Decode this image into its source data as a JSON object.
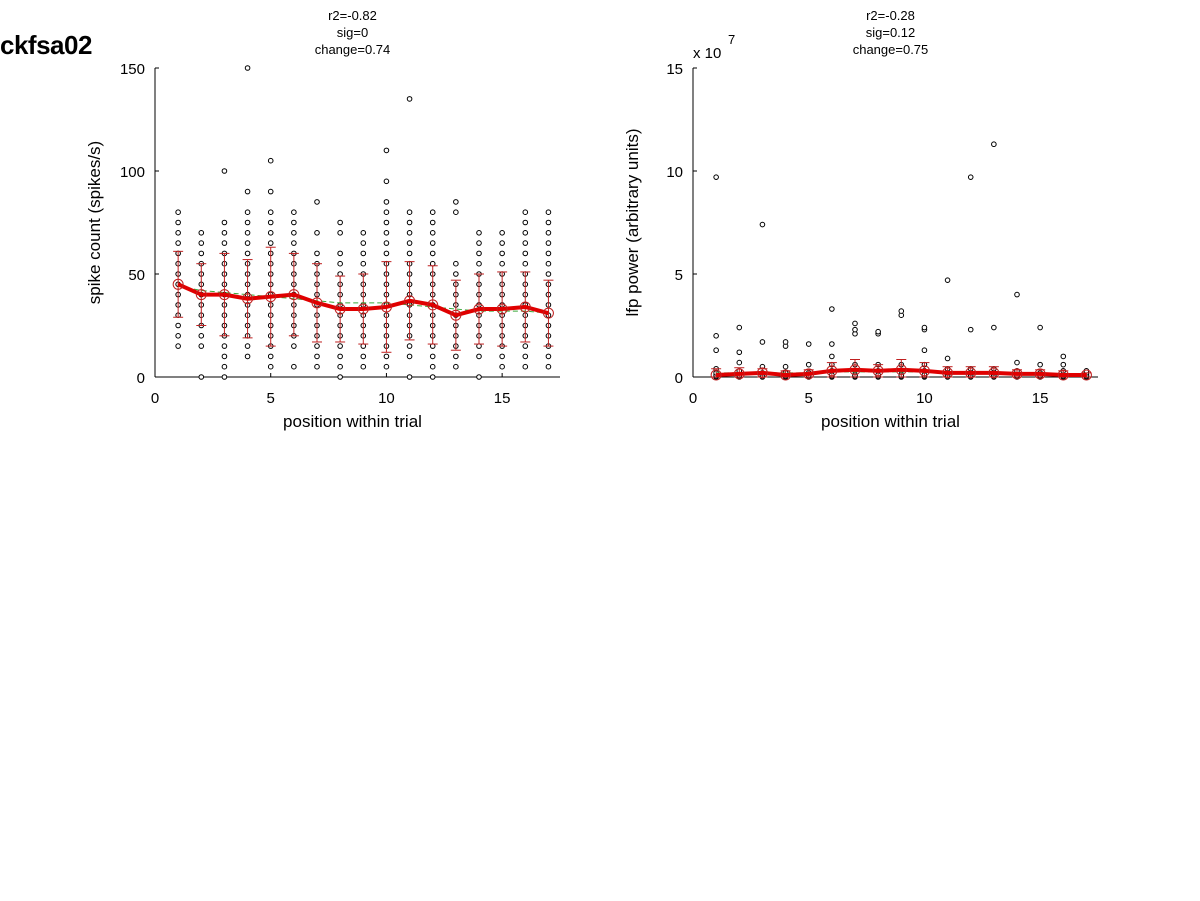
{
  "figure_title": "ckfsa02",
  "colors": {
    "mean_line": "#e00000",
    "errorbar": "#c02020",
    "fit_line": "#3aa83a",
    "points": "#000000"
  },
  "chart_data": [
    {
      "type": "scatter",
      "stats": [
        "r2=-0.82",
        "sig=0",
        "change=0.74"
      ],
      "xlabel": "position within trial",
      "ylabel": "spike count (spikes/s)",
      "exponent_label": "",
      "xlim": [
        0,
        17.5
      ],
      "ylim": [
        0,
        150
      ],
      "xticks": [
        0,
        5,
        10,
        15
      ],
      "yticks": [
        0,
        50,
        100,
        150
      ],
      "ytick_labels": [
        "0",
        "50",
        "100",
        "150"
      ],
      "mean": [
        45,
        40,
        40,
        38,
        39,
        40,
        36,
        33,
        33,
        34,
        37,
        35,
        30,
        33,
        33,
        34,
        31
      ],
      "std": [
        16,
        15,
        20,
        19,
        24,
        20,
        19,
        16,
        17,
        22,
        19,
        19,
        17,
        17,
        18,
        17,
        16
      ],
      "fit": [
        44,
        42,
        41,
        40,
        39,
        38,
        37,
        36,
        36,
        36,
        35,
        34,
        33,
        32,
        32,
        32,
        31
      ],
      "points": [
        [
          15,
          20,
          25,
          30,
          35,
          40,
          45,
          50,
          55,
          60,
          65,
          70,
          75,
          80
        ],
        [
          0,
          15,
          20,
          25,
          30,
          35,
          40,
          45,
          50,
          55,
          60,
          65,
          70
        ],
        [
          0,
          5,
          10,
          15,
          20,
          25,
          30,
          35,
          40,
          45,
          50,
          55,
          60,
          65,
          70,
          75,
          100
        ],
        [
          10,
          15,
          20,
          25,
          30,
          35,
          40,
          45,
          50,
          55,
          60,
          65,
          70,
          75,
          80,
          90,
          150
        ],
        [
          5,
          10,
          15,
          20,
          25,
          30,
          35,
          40,
          45,
          50,
          55,
          60,
          65,
          70,
          75,
          80,
          90,
          105
        ],
        [
          5,
          15,
          20,
          25,
          30,
          35,
          40,
          45,
          50,
          55,
          60,
          65,
          70,
          75,
          80
        ],
        [
          5,
          10,
          15,
          20,
          25,
          30,
          35,
          40,
          45,
          50,
          55,
          60,
          70,
          85
        ],
        [
          0,
          5,
          10,
          15,
          20,
          25,
          30,
          35,
          40,
          45,
          50,
          55,
          60,
          70,
          75
        ],
        [
          5,
          10,
          15,
          20,
          25,
          30,
          35,
          40,
          45,
          50,
          55,
          60,
          65,
          70
        ],
        [
          5,
          10,
          15,
          20,
          25,
          30,
          35,
          40,
          45,
          50,
          55,
          60,
          65,
          70,
          75,
          80,
          85,
          95,
          110
        ],
        [
          0,
          10,
          15,
          20,
          25,
          30,
          35,
          40,
          45,
          50,
          55,
          60,
          65,
          70,
          75,
          80,
          135
        ],
        [
          0,
          5,
          10,
          15,
          20,
          25,
          30,
          35,
          40,
          45,
          50,
          55,
          60,
          65,
          70,
          75,
          80
        ],
        [
          5,
          10,
          15,
          20,
          25,
          30,
          35,
          40,
          45,
          50,
          55,
          80,
          85
        ],
        [
          0,
          10,
          15,
          20,
          25,
          30,
          35,
          40,
          45,
          50,
          55,
          60,
          65,
          70
        ],
        [
          5,
          10,
          15,
          20,
          25,
          30,
          35,
          40,
          45,
          50,
          55,
          60,
          65,
          70
        ],
        [
          5,
          10,
          15,
          20,
          25,
          30,
          35,
          40,
          45,
          50,
          55,
          60,
          65,
          70,
          75,
          80
        ],
        [
          5,
          10,
          15,
          20,
          25,
          30,
          35,
          40,
          45,
          50,
          55,
          60,
          65,
          70,
          75,
          80
        ]
      ]
    },
    {
      "type": "scatter",
      "stats": [
        "r2=-0.28",
        "sig=0.12",
        "change=0.75"
      ],
      "xlabel": "position within trial",
      "ylabel": "lfp power (arbitrary units)",
      "exponent_label": "x 10",
      "exponent_sup": "7",
      "xlim": [
        0,
        17.5
      ],
      "ylim": [
        0,
        15
      ],
      "xticks": [
        0,
        5,
        10,
        15
      ],
      "yticks": [
        0,
        5,
        10,
        15
      ],
      "ytick_labels": [
        "0",
        "5",
        "10",
        "15"
      ],
      "mean": [
        0.1,
        0.15,
        0.2,
        0.1,
        0.15,
        0.3,
        0.35,
        0.3,
        0.35,
        0.3,
        0.2,
        0.2,
        0.2,
        0.15,
        0.15,
        0.1,
        0.1
      ],
      "std": [
        0.3,
        0.3,
        0.2,
        0.2,
        0.2,
        0.4,
        0.5,
        0.3,
        0.5,
        0.4,
        0.3,
        0.3,
        0.3,
        0.2,
        0.2,
        0.2,
        0.1
      ],
      "fit": [
        0.2,
        0.2,
        0.2,
        0.2,
        0.2,
        0.25,
        0.25,
        0.25,
        0.25,
        0.25,
        0.2,
        0.2,
        0.2,
        0.2,
        0.15,
        0.15,
        0.1
      ],
      "points": [
        [
          0,
          0.05,
          0.1,
          0.2,
          0.4,
          1.3,
          2.0,
          9.7
        ],
        [
          0,
          0.05,
          0.1,
          0.3,
          0.7,
          1.2,
          2.4
        ],
        [
          0,
          0.05,
          0.1,
          0.2,
          0.5,
          1.7,
          7.4
        ],
        [
          0,
          0.05,
          0.1,
          0.2,
          0.5,
          1.5,
          1.7
        ],
        [
          0,
          0.05,
          0.1,
          0.2,
          0.6,
          1.6
        ],
        [
          0,
          0.05,
          0.1,
          0.3,
          0.6,
          1.0,
          1.6,
          3.3
        ],
        [
          0,
          0.05,
          0.1,
          0.3,
          0.6,
          2.1,
          2.3,
          2.6
        ],
        [
          0,
          0.05,
          0.1,
          0.3,
          0.6,
          2.1,
          2.2
        ],
        [
          0,
          0.05,
          0.1,
          0.3,
          0.6,
          3.0,
          3.2
        ],
        [
          0,
          0.05,
          0.1,
          0.3,
          0.6,
          1.3,
          2.3,
          2.4
        ],
        [
          0,
          0.05,
          0.1,
          0.2,
          0.4,
          0.9,
          4.7
        ],
        [
          0,
          0.05,
          0.1,
          0.2,
          0.4,
          2.3,
          9.7
        ],
        [
          0,
          0.05,
          0.1,
          0.2,
          0.4,
          2.4,
          11.3
        ],
        [
          0,
          0.05,
          0.1,
          0.3,
          0.7,
          4.0
        ],
        [
          0,
          0.05,
          0.1,
          0.2,
          0.6,
          2.4
        ],
        [
          0,
          0.05,
          0.1,
          0.3,
          0.6,
          1.0
        ],
        [
          0,
          0.05,
          0.1,
          0.2,
          0.3
        ]
      ]
    }
  ]
}
